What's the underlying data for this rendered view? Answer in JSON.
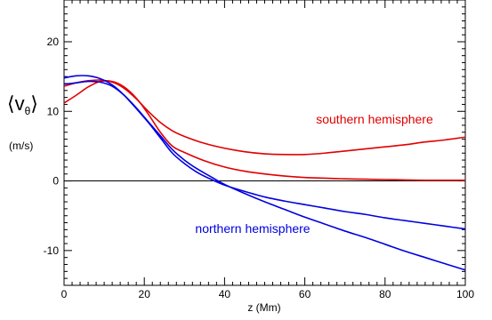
{
  "chart_data": {
    "type": "line",
    "xlabel": "z (Mm)",
    "ylabel_main": "⟨v",
    "ylabel_sub": "θ",
    "ylabel_close": "⟩",
    "ylabel_units": "(m/s)",
    "xlim": [
      0,
      100
    ],
    "ylim": [
      -15,
      26
    ],
    "xticks": [
      0,
      20,
      40,
      60,
      80,
      100
    ],
    "yticks": [
      -10,
      0,
      10,
      20
    ],
    "reference_line_y": 0,
    "colors": {
      "south": "#e00000",
      "north": "#0000e0",
      "axis": "#000000"
    },
    "series": [
      {
        "group": "south",
        "x": [
          0,
          3,
          6,
          9,
          12,
          15,
          18,
          21,
          24,
          27,
          30,
          35,
          40,
          45,
          50,
          55,
          60,
          65,
          70,
          75,
          80,
          85,
          90,
          95,
          100
        ],
        "y": [
          13.6,
          14.1,
          14.4,
          14.5,
          14.2,
          13.3,
          11.8,
          10.0,
          8.4,
          7.2,
          6.4,
          5.4,
          4.7,
          4.2,
          3.9,
          3.8,
          3.8,
          4.0,
          4.3,
          4.6,
          4.9,
          5.2,
          5.6,
          5.9,
          6.3
        ]
      },
      {
        "group": "south",
        "x": [
          0,
          3,
          6,
          9,
          12,
          15,
          18,
          21,
          24,
          27,
          30,
          35,
          40,
          45,
          50,
          55,
          60,
          65,
          70,
          75,
          80,
          85,
          90,
          95,
          100
        ],
        "y": [
          11.2,
          12.3,
          13.5,
          14.3,
          14.3,
          13.5,
          11.9,
          9.6,
          7.0,
          5.0,
          4.1,
          2.9,
          2.0,
          1.4,
          1.0,
          0.7,
          0.5,
          0.4,
          0.3,
          0.25,
          0.2,
          0.15,
          0.1,
          0.1,
          0.1
        ]
      },
      {
        "group": "north",
        "x": [
          0,
          3,
          6,
          9,
          12,
          15,
          18,
          21,
          24,
          27,
          30,
          33,
          36,
          40,
          45,
          50,
          55,
          60,
          65,
          70,
          75,
          80,
          85,
          90,
          95,
          100
        ],
        "y": [
          14.8,
          15.1,
          15.1,
          14.7,
          13.8,
          12.3,
          10.4,
          8.4,
          6.2,
          4.0,
          2.5,
          1.3,
          0.4,
          -0.6,
          -1.5,
          -2.3,
          -2.9,
          -3.4,
          -3.9,
          -4.4,
          -4.8,
          -5.3,
          -5.7,
          -6.1,
          -6.5,
          -6.9
        ]
      },
      {
        "group": "north",
        "x": [
          0,
          3,
          6,
          9,
          12,
          15,
          18,
          21,
          24,
          27,
          30,
          33,
          36,
          40,
          45,
          50,
          55,
          60,
          65,
          70,
          75,
          80,
          85,
          90,
          95,
          100
        ],
        "y": [
          13.9,
          14.1,
          14.3,
          14.2,
          13.6,
          12.3,
          10.5,
          8.5,
          6.5,
          4.5,
          3.0,
          1.8,
          0.8,
          -0.5,
          -1.8,
          -3.0,
          -4.1,
          -5.2,
          -6.2,
          -7.2,
          -8.1,
          -9.1,
          -10.1,
          -11.0,
          -11.9,
          -12.8
        ]
      }
    ],
    "annotations": [
      {
        "text": "southern hemisphere",
        "group": "south"
      },
      {
        "text": "northern hemisphere",
        "group": "north"
      }
    ]
  }
}
